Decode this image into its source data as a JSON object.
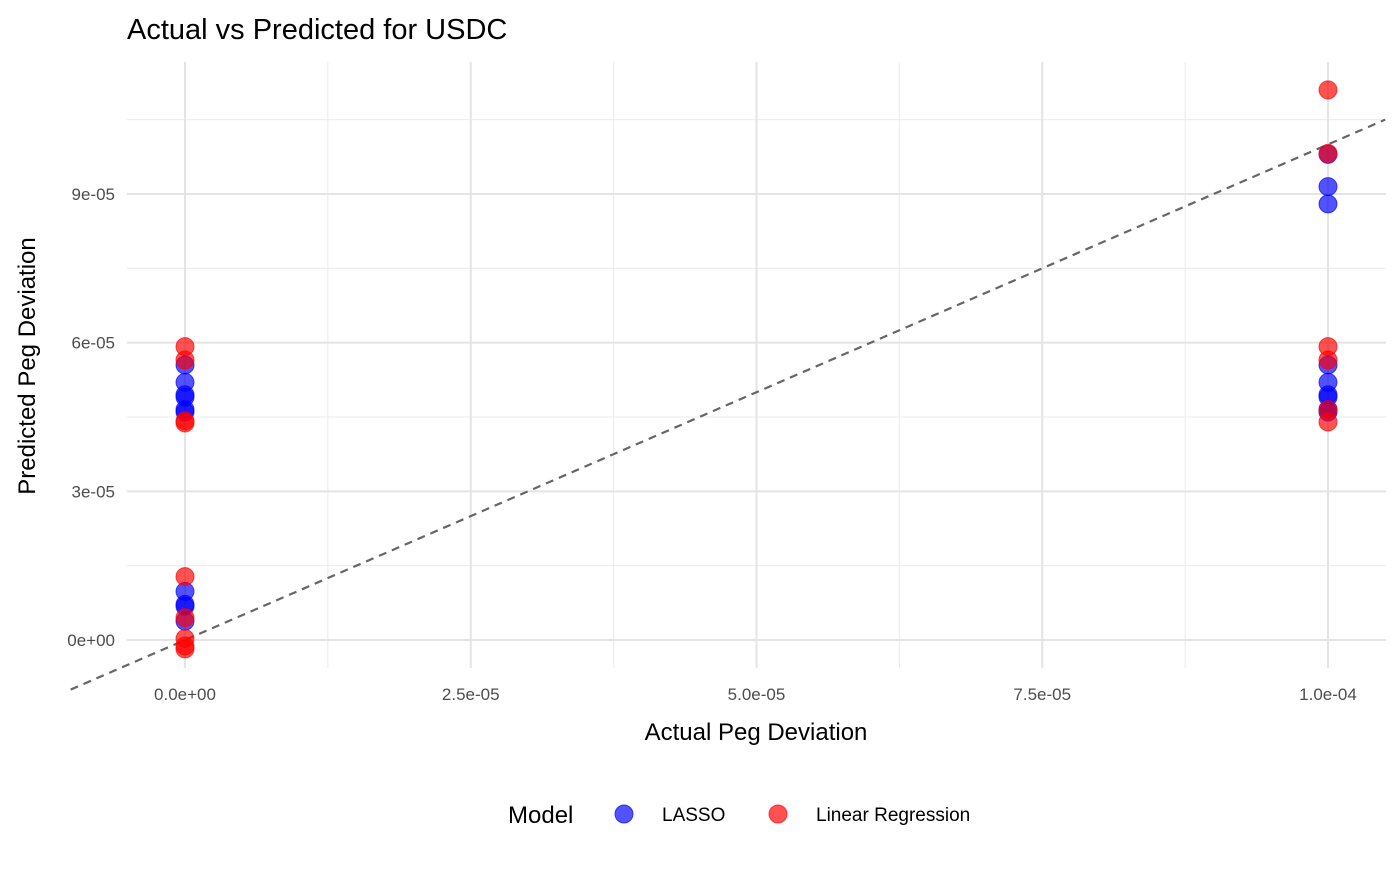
{
  "chart_data": {
    "type": "scatter",
    "title": "Actual vs Predicted for USDC",
    "xlabel": "Actual Peg Deviation",
    "ylabel": "Predicted Peg Deviation",
    "xlim": [
      -1e-05,
      0.000105
    ],
    "ylim": [
      -4.5e-06,
      0.000111
    ],
    "x_ticks": [
      0,
      2.5e-05,
      5e-05,
      7.5e-05,
      0.0001
    ],
    "x_tick_labels": [
      "0.0e+00",
      "2.5e-05",
      "5.0e-05",
      "7.5e-05",
      "1.0e-04"
    ],
    "y_ticks": [
      0,
      3e-05,
      6e-05,
      9e-05
    ],
    "y_tick_labels": [
      "0e+00",
      "3e-05",
      "6e-05",
      "9e-05"
    ],
    "grid": true,
    "reference_line": {
      "style": "dashed",
      "color": "#666666",
      "slope": 1,
      "intercept": 0
    },
    "legend": {
      "title": "Model",
      "position": "bottom"
    },
    "series": [
      {
        "name": "LASSO",
        "color": "#0000ff",
        "x": [
          0,
          0,
          0,
          0,
          0,
          0,
          0,
          0,
          0,
          0,
          0.0001,
          0.0001,
          0.0001,
          0.0001,
          0.0001,
          0.0001,
          0.0001,
          0.0001,
          0.0001
        ],
        "y": [
          5.55e-05,
          5.2e-05,
          4.95e-05,
          4.9e-05,
          4.65e-05,
          4.6e-05,
          9.8e-06,
          7.2e-06,
          6.8e-06,
          3.8e-06,
          9.8e-05,
          9.15e-05,
          8.8e-05,
          5.55e-05,
          5.2e-05,
          4.95e-05,
          4.9e-05,
          4.65e-05,
          4.6e-05
        ]
      },
      {
        "name": "Linear Regression",
        "color": "#ff0000",
        "x": [
          0,
          0,
          0,
          0,
          0,
          0,
          0,
          0,
          0,
          0.0001,
          0.0001,
          0.0001,
          0.0001,
          0.0001,
          0.0001
        ],
        "y": [
          5.92e-05,
          5.65e-05,
          4.42e-05,
          4.38e-05,
          1.28e-05,
          3e-07,
          -1.2e-06,
          -1.8e-06,
          4.5e-06,
          0.000111,
          9.82e-05,
          5.92e-05,
          5.65e-05,
          4.65e-05,
          4.4e-05
        ]
      }
    ]
  }
}
